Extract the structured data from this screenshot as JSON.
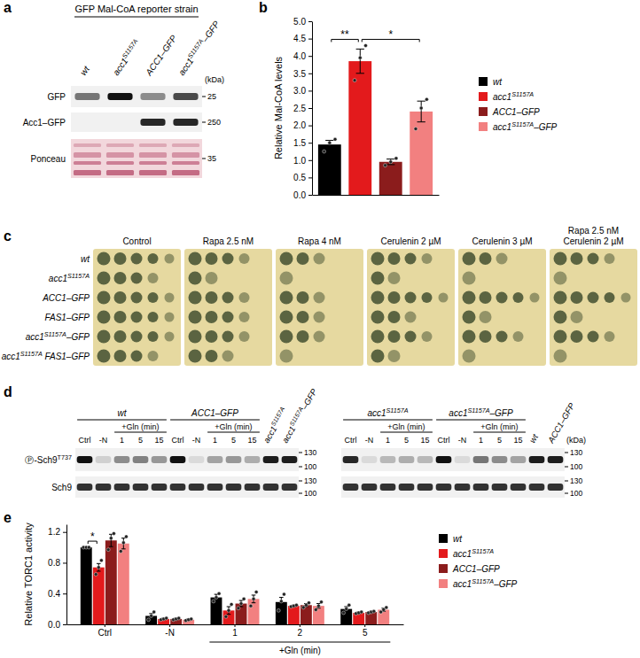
{
  "panel_labels": [
    "a",
    "b",
    "c",
    "d",
    "e"
  ],
  "blot_a": {
    "title": "GFP Mal-CoA reporter strain",
    "lanes": [
      "wt",
      "acc1S1157A",
      "ACC1–GFP",
      "acc1S1157A–GFP"
    ],
    "unit": "(kDa)",
    "rows": [
      {
        "label": "GFP",
        "marker": 25,
        "intensities": [
          0.55,
          1.0,
          0.45,
          0.75
        ]
      },
      {
        "label": "Acc1–GFP",
        "marker": 250,
        "intensities": [
          0,
          0,
          0.9,
          0.9
        ]
      },
      {
        "label": "Ponceau",
        "marker": 35,
        "intensities": [
          1,
          1,
          1,
          1
        ]
      }
    ]
  },
  "chart_data": [
    {
      "type": "bar",
      "y_label": "Relative Mal-CoA levels",
      "categories": [
        "wt",
        "acc1S1157A",
        "ACC1–GFP",
        "acc1S1157A–GFP"
      ],
      "values": [
        1.45,
        3.85,
        0.95,
        2.4
      ],
      "errors": [
        0.12,
        0.35,
        0.08,
        0.3
      ],
      "points": [
        [
          1.25,
          1.5,
          1.6
        ],
        [
          3.3,
          3.95,
          4.3
        ],
        [
          0.85,
          0.95,
          1.05
        ],
        [
          1.9,
          2.5,
          2.75
        ]
      ],
      "colors": [
        "#000000",
        "#e31a1c",
        "#8b1c1c",
        "#f28080"
      ],
      "ylim": [
        0,
        5
      ],
      "yticks": [
        {
          "value": 0,
          "label": "0.0"
        },
        0.5,
        {
          "value": 1,
          "label": "1.0"
        },
        1.5,
        {
          "value": 2,
          "label": "2.0"
        },
        2.5,
        {
          "value": 3,
          "label": "3.0"
        },
        3.5,
        {
          "value": 4,
          "label": "4.0"
        },
        4.5,
        {
          "value": 5,
          "label": "5.0"
        }
      ],
      "tick_labels": "y",
      "legend": "right",
      "annotations": [
        {
          "text": "**",
          "from": 0,
          "to": 1
        },
        {
          "text": "*",
          "from": 1,
          "to": 3
        }
      ]
    },
    {
      "type": "bar",
      "y_label": "Relative TORC1 activity",
      "categories": [
        "Ctrl",
        "-N",
        "1",
        "2",
        "5"
      ],
      "category_group": {
        "label": "+Gln (min)",
        "from": 2,
        "to": 4
      },
      "series": [
        {
          "name": "wt",
          "color": "#000000",
          "values": [
            1.0,
            0.11,
            0.35,
            0.29,
            0.2
          ],
          "errors": [
            0,
            0.03,
            0.04,
            0.06,
            0.03
          ],
          "points": [
            [
              1,
              1,
              1
            ],
            [
              0.06,
              0.11,
              0.16
            ],
            [
              0.3,
              0.35,
              0.4
            ],
            [
              0.18,
              0.3,
              0.39
            ],
            [
              0.15,
              0.2,
              0.25
            ]
          ]
        },
        {
          "name": "acc1S1157A",
          "color": "#e31a1c",
          "values": [
            0.74,
            0.07,
            0.18,
            0.24,
            0.15
          ],
          "errors": [
            0.05,
            0.01,
            0.05,
            0.01,
            0.01
          ],
          "points": [
            [
              0.65,
              0.74,
              0.83
            ],
            [
              0.06,
              0.07,
              0.08
            ],
            [
              0.1,
              0.18,
              0.26
            ],
            [
              0.23,
              0.24,
              0.25
            ],
            [
              0.14,
              0.15,
              0.16
            ]
          ]
        },
        {
          "name": "ACC1–GFP",
          "color": "#8b1c1c",
          "values": [
            1.09,
            0.07,
            0.27,
            0.25,
            0.16
          ],
          "errors": [
            0.08,
            0.01,
            0.04,
            0.02,
            0.01
          ],
          "points": [
            [
              0.97,
              1.12,
              1.18
            ],
            [
              0.06,
              0.07,
              0.08
            ],
            [
              0.21,
              0.27,
              0.33
            ],
            [
              0.22,
              0.25,
              0.28
            ],
            [
              0.15,
              0.16,
              0.17
            ]
          ]
        },
        {
          "name": "acc1S1157A–GFP",
          "color": "#f28080",
          "values": [
            1.05,
            0.06,
            0.33,
            0.24,
            0.19
          ],
          "errors": [
            0.07,
            0.01,
            0.05,
            0.03,
            0.02
          ],
          "points": [
            [
              0.95,
              1.06,
              1.14
            ],
            [
              0.05,
              0.06,
              0.07
            ],
            [
              0.24,
              0.33,
              0.42
            ],
            [
              0.19,
              0.24,
              0.29
            ],
            [
              0.16,
              0.19,
              0.22
            ]
          ]
        }
      ],
      "ylim": [
        0,
        1.3
      ],
      "yticks": [
        {
          "value": 0,
          "label": "0.0"
        },
        0.4,
        0.8,
        1.2
      ],
      "legend": "right",
      "annotations": [
        {
          "text": "*",
          "category": 0,
          "from": 0,
          "to": 1
        }
      ]
    }
  ],
  "spot_assay": {
    "conditions": [
      [
        "Control"
      ],
      [
        "Rapa 2.5 nM"
      ],
      [
        "Rapa 4 nM"
      ],
      [
        "Cerulenin 2 µM"
      ],
      [
        "Cerulenin 3 µM"
      ],
      [
        "Rapa 2.5 nM",
        "Cerulenin 2 µM"
      ]
    ],
    "strains": [
      "wt",
      "acc1S1157A",
      "ACC1–GFP",
      "FAS1–GFP",
      "acc1S1157A–GFP",
      "acc1S1157A FAS1–GFP"
    ],
    "spots": [
      [
        5,
        4,
        5,
        5,
        5,
        4
      ],
      [
        4,
        2,
        4,
        4,
        4,
        3
      ],
      [
        3,
        1,
        3,
        3,
        3,
        1
      ],
      [
        4,
        2,
        5,
        3,
        4,
        2
      ],
      [
        3,
        1,
        5,
        2,
        4,
        1
      ],
      [
        4,
        1,
        5,
        2,
        4,
        1
      ]
    ]
  },
  "blot_d": {
    "rows": [
      "Ⓟ-Sch9T737",
      "Sch9"
    ],
    "markers": [
      130,
      100
    ],
    "unit": "(kDa)",
    "blots": [
      {
        "groups": [
          {
            "label": "wt",
            "lanes": [
              "Ctrl",
              "-N",
              "1",
              "5",
              "15"
            ],
            "subgroup": {
              "label": "+Gln (min)",
              "from": 2,
              "to": 4
            }
          },
          {
            "label": "ACC1–GFP",
            "lanes": [
              "Ctrl",
              "-N",
              "1",
              "5",
              "15"
            ],
            "subgroup": {
              "label": "+Gln (min)",
              "from": 2,
              "to": 4
            }
          }
        ],
        "extra_lanes": [
          "acc1S1157A",
          "acc1S1157A–GFP"
        ],
        "phospho": [
          1.0,
          0.15,
          0.45,
          0.5,
          0.4,
          1.0,
          0.1,
          0.35,
          0.4,
          0.3,
          0.95,
          0.95
        ],
        "total": [
          0.85,
          0.85,
          0.85,
          0.85,
          0.85,
          0.85,
          0.85,
          0.85,
          0.85,
          0.85,
          0.85,
          0.85
        ]
      },
      {
        "groups": [
          {
            "label": "acc1S1157A",
            "lanes": [
              "Ctrl",
              "-N",
              "1",
              "5",
              "15"
            ],
            "subgroup": {
              "label": "+Gln (min)",
              "from": 2,
              "to": 4
            }
          },
          {
            "label": "acc1S1157A–GFP",
            "lanes": [
              "Ctrl",
              "-N",
              "1",
              "5",
              "15"
            ],
            "subgroup": {
              "label": "+Gln (min)",
              "from": 2,
              "to": 4
            }
          }
        ],
        "extra_lanes": [
          "wt",
          "ACC1–GFP"
        ],
        "phospho": [
          0.9,
          0.1,
          0.25,
          0.3,
          0.25,
          1.0,
          0.1,
          0.55,
          0.45,
          0.35,
          0.95,
          0.95
        ],
        "total": [
          0.85,
          0.85,
          0.85,
          0.85,
          0.85,
          0.85,
          0.85,
          0.85,
          0.85,
          0.85,
          0.85,
          0.85
        ]
      }
    ]
  }
}
